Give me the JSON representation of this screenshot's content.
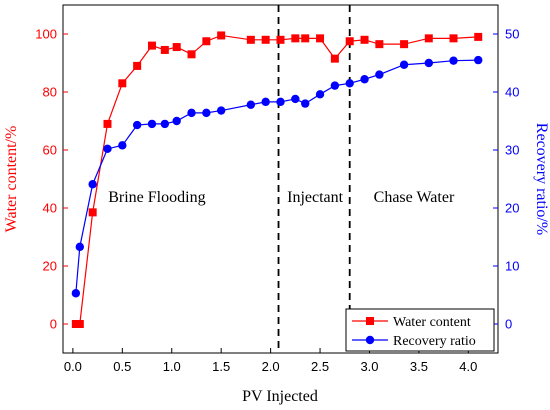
{
  "chart_data": {
    "type": "line",
    "xlabel": "PV Injected",
    "ylabel_left": "Water content/%",
    "ylabel_right": "Recovery ratio/%",
    "xlim": [
      -0.1,
      4.3
    ],
    "ylim_left": [
      -10,
      110
    ],
    "ylim_right": [
      -5,
      55
    ],
    "x_ticks": [
      0.0,
      0.5,
      1.0,
      1.5,
      2.0,
      2.5,
      3.0,
      3.5,
      4.0
    ],
    "x_tick_labels": [
      "0.0",
      "0.5",
      "1.0",
      "1.5",
      "2.0",
      "2.5",
      "3.0",
      "3.5",
      "4.0"
    ],
    "y_left_ticks": [
      0,
      20,
      40,
      60,
      80,
      100
    ],
    "y_left_tick_labels": [
      "0",
      "20",
      "40",
      "60",
      "80",
      "100"
    ],
    "y_right_ticks": [
      0,
      10,
      20,
      30,
      40,
      50
    ],
    "y_right_tick_labels": [
      "0",
      "10",
      "20",
      "30",
      "40",
      "50"
    ],
    "left_color": "#ff0000",
    "right_color": "#0000ff",
    "grid": false,
    "legend_position": "bottom-right",
    "stage_boundaries": [
      2.08,
      2.8
    ],
    "annotations": [
      {
        "text": "Brine Flooding",
        "x": 0.85,
        "y_right": 21
      },
      {
        "text": "Injectant",
        "x": 2.45,
        "y_right": 21
      },
      {
        "text": "Chase Water",
        "x": 3.45,
        "y_right": 21
      }
    ],
    "series": [
      {
        "name": "Water content",
        "axis": "left",
        "color": "#ff0000",
        "marker": "square",
        "points": [
          [
            0.03,
            0
          ],
          [
            0.07,
            0
          ],
          [
            0.2,
            38.5
          ],
          [
            0.35,
            69
          ],
          [
            0.5,
            83
          ],
          [
            0.65,
            89
          ],
          [
            0.8,
            96
          ],
          [
            0.93,
            94.5
          ],
          [
            1.05,
            95.5
          ],
          [
            1.2,
            93
          ],
          [
            1.35,
            97.5
          ],
          [
            1.5,
            99.5
          ],
          [
            1.8,
            98
          ],
          [
            1.95,
            98
          ],
          [
            2.1,
            98
          ],
          [
            2.25,
            98.5
          ],
          [
            2.35,
            98.5
          ],
          [
            2.5,
            98.5
          ],
          [
            2.65,
            91.5
          ],
          [
            2.8,
            97.5
          ],
          [
            2.95,
            98
          ],
          [
            3.1,
            96.5
          ],
          [
            3.35,
            96.5
          ],
          [
            3.6,
            98.5
          ],
          [
            3.85,
            98.5
          ],
          [
            4.1,
            99
          ]
        ]
      },
      {
        "name": "Recovery ratio",
        "axis": "right",
        "color": "#0000ff",
        "marker": "circle",
        "points": [
          [
            0.03,
            5.3
          ],
          [
            0.07,
            13.3
          ],
          [
            0.2,
            24.1
          ],
          [
            0.35,
            30.2
          ],
          [
            0.5,
            30.8
          ],
          [
            0.65,
            34.3
          ],
          [
            0.8,
            34.5
          ],
          [
            0.93,
            34.5
          ],
          [
            1.05,
            35.0
          ],
          [
            1.2,
            36.4
          ],
          [
            1.35,
            36.4
          ],
          [
            1.5,
            36.8
          ],
          [
            1.8,
            37.8
          ],
          [
            1.95,
            38.3
          ],
          [
            2.1,
            38.3
          ],
          [
            2.25,
            38.8
          ],
          [
            2.35,
            38.0
          ],
          [
            2.5,
            39.6
          ],
          [
            2.65,
            41.1
          ],
          [
            2.8,
            41.5
          ],
          [
            2.95,
            42.2
          ],
          [
            3.1,
            43.0
          ],
          [
            3.35,
            44.7
          ],
          [
            3.6,
            45.0
          ],
          [
            3.85,
            45.4
          ],
          [
            4.1,
            45.5
          ]
        ]
      }
    ]
  }
}
